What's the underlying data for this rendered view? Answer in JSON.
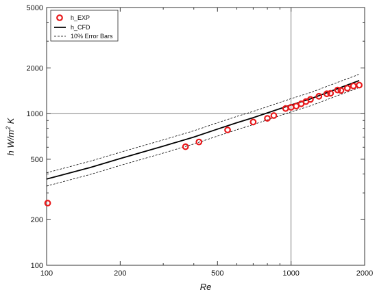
{
  "chart_data": {
    "type": "scatter",
    "title": "",
    "xlabel": "Re",
    "ylabel_main": "h W/m",
    "ylabel_sup": "2",
    "ylabel_tail": " K",
    "x_scale": "log",
    "y_scale": "log",
    "xlim": [
      100,
      2000
    ],
    "ylim": [
      100,
      5000
    ],
    "x_ticks": [
      100,
      200,
      500,
      1000,
      2000
    ],
    "y_ticks": [
      100,
      200,
      500,
      1000,
      2000,
      5000
    ],
    "x_ticks_minor": [
      300,
      400,
      600,
      700,
      800,
      900
    ],
    "y_ticks_minor": [
      300,
      400,
      600,
      700,
      800,
      900,
      3000,
      4000
    ],
    "reference_lines": {
      "x": 1000,
      "y": 1000
    },
    "legend_position": "top-left",
    "series": [
      {
        "name": "h_EXP",
        "marker": "circle-open",
        "color": "#e8191b",
        "x": [
          101,
          370,
          420,
          550,
          700,
          800,
          850,
          950,
          1000,
          1050,
          1100,
          1150,
          1200,
          1300,
          1400,
          1450,
          1550,
          1600,
          1700,
          1800,
          1900
        ],
        "y": [
          257,
          605,
          650,
          780,
          880,
          930,
          970,
          1080,
          1100,
          1120,
          1160,
          1200,
          1240,
          1300,
          1350,
          1360,
          1430,
          1420,
          1470,
          1520,
          1540
        ]
      },
      {
        "name": "h_CFD",
        "line_style": "solid",
        "color": "#000000",
        "x": [
          100,
          150,
          200,
          300,
          400,
          500,
          600,
          700,
          800,
          1000,
          1200,
          1500,
          1900
        ],
        "y": [
          370,
          440,
          505,
          610,
          700,
          790,
          870,
          940,
          1010,
          1140,
          1250,
          1430,
          1650
        ]
      },
      {
        "name": "10% Error Bars",
        "line_style": "dashed",
        "color": "#000000",
        "x": [
          100,
          150,
          200,
          300,
          400,
          500,
          600,
          700,
          800,
          1000,
          1200,
          1500,
          1900
        ],
        "y": [
          407,
          484,
          556,
          671,
          770,
          869,
          957,
          1034,
          1111,
          1254,
          1375,
          1573,
          1815
        ]
      },
      {
        "name": "",
        "line_style": "dashed",
        "color": "#000000",
        "x": [
          100,
          150,
          200,
          300,
          400,
          500,
          600,
          700,
          800,
          1000,
          1200,
          1500,
          1900
        ],
        "y": [
          333,
          396,
          455,
          549,
          630,
          711,
          783,
          846,
          909,
          1026,
          1125,
          1287,
          1485
        ]
      }
    ]
  }
}
